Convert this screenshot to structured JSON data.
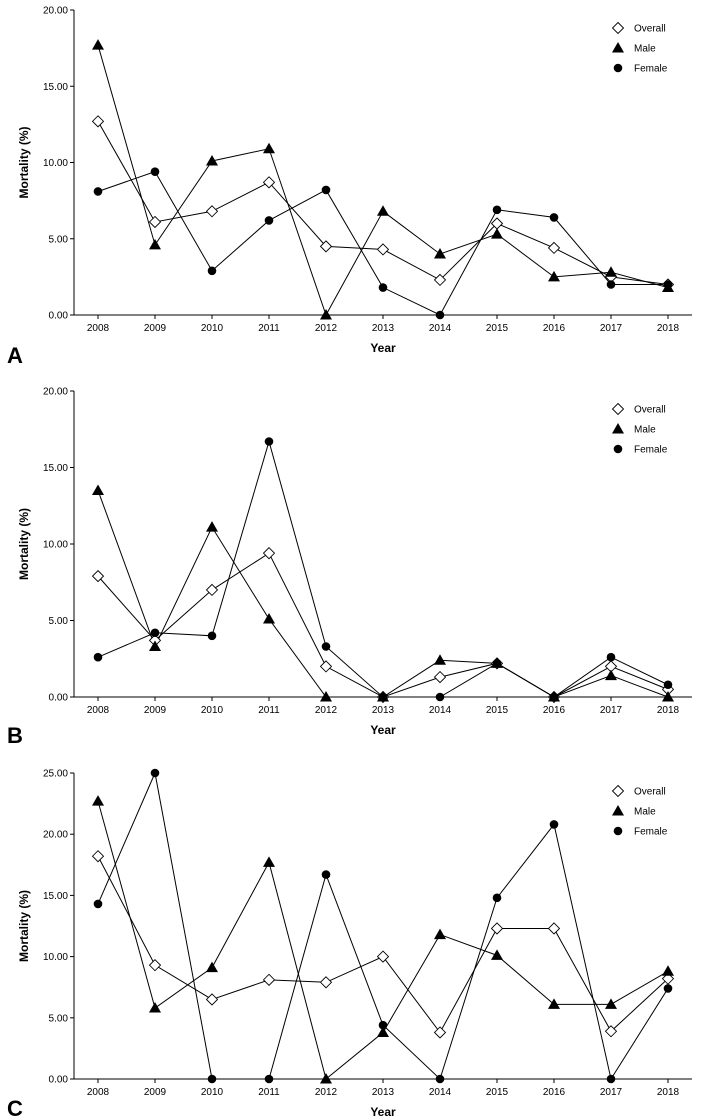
{
  "chart_data": [
    {
      "type": "line",
      "panel": "A",
      "title": "",
      "xlabel": "Year",
      "ylabel": "Mortality (%)",
      "categories": [
        "2008",
        "2009",
        "2010",
        "2011",
        "2012",
        "2013",
        "2014",
        "2015",
        "2016",
        "2017",
        "2018"
      ],
      "ylim": [
        0,
        20
      ],
      "yticks": [
        "0.00",
        "5.00",
        "10.00",
        "15.00",
        "20.00"
      ],
      "series": [
        {
          "name": "Overall",
          "marker": "diamond",
          "values": [
            12.7,
            6.1,
            6.8,
            8.7,
            4.5,
            4.3,
            2.3,
            6.0,
            4.4,
            2.5,
            2.0
          ]
        },
        {
          "name": "Male",
          "marker": "triangle",
          "values": [
            17.7,
            4.6,
            10.1,
            10.9,
            0.0,
            6.8,
            4.0,
            5.3,
            2.5,
            2.8,
            1.8
          ]
        },
        {
          "name": "Female",
          "marker": "circle",
          "values": [
            8.1,
            9.4,
            2.9,
            6.2,
            8.2,
            1.8,
            0.0,
            6.9,
            6.4,
            2.0,
            2.0
          ]
        }
      ]
    },
    {
      "type": "line",
      "panel": "B",
      "title": "",
      "xlabel": "Year",
      "ylabel": "Mortality (%)",
      "categories": [
        "2008",
        "2009",
        "2010",
        "2011",
        "2012",
        "2013",
        "2014",
        "2015",
        "2016",
        "2017",
        "2018"
      ],
      "ylim": [
        0,
        20
      ],
      "yticks": [
        "0.00",
        "5.00",
        "10.00",
        "15.00",
        "20.00"
      ],
      "series": [
        {
          "name": "Overall",
          "marker": "diamond",
          "values": [
            7.9,
            3.7,
            7.0,
            9.4,
            2.0,
            0.0,
            1.3,
            2.2,
            0.0,
            2.0,
            0.5
          ]
        },
        {
          "name": "Male",
          "marker": "triangle",
          "values": [
            13.5,
            3.3,
            11.1,
            5.1,
            0.0,
            0.0,
            2.4,
            2.2,
            0.0,
            1.4,
            0.0
          ]
        },
        {
          "name": "Female",
          "marker": "circle",
          "values": [
            2.6,
            4.2,
            4.0,
            16.7,
            3.3,
            0.0,
            0.0,
            2.2,
            0.0,
            2.6,
            0.8
          ]
        }
      ]
    },
    {
      "type": "line",
      "panel": "C",
      "title": "",
      "xlabel": "Year",
      "ylabel": "Mortality (%)",
      "categories": [
        "2008",
        "2009",
        "2010",
        "2011",
        "2012",
        "2013",
        "2014",
        "2015",
        "2016",
        "2017",
        "2018"
      ],
      "ylim": [
        0,
        25
      ],
      "yticks": [
        "0.00",
        "5.00",
        "10.00",
        "15.00",
        "20.00",
        "25.00"
      ],
      "series": [
        {
          "name": "Overall",
          "marker": "diamond",
          "values": [
            18.2,
            9.3,
            6.5,
            8.1,
            7.9,
            10.0,
            3.8,
            12.3,
            12.3,
            3.9,
            8.2
          ]
        },
        {
          "name": "Male",
          "marker": "triangle",
          "values": [
            22.7,
            5.8,
            9.1,
            17.7,
            0.0,
            3.8,
            11.8,
            10.1,
            6.1,
            6.1,
            8.8
          ]
        },
        {
          "name": "Female",
          "marker": "circle",
          "values": [
            14.3,
            25.0,
            0.0,
            0.0,
            16.7,
            4.4,
            0.0,
            14.8,
            20.8,
            0.0,
            7.4
          ]
        }
      ]
    }
  ]
}
